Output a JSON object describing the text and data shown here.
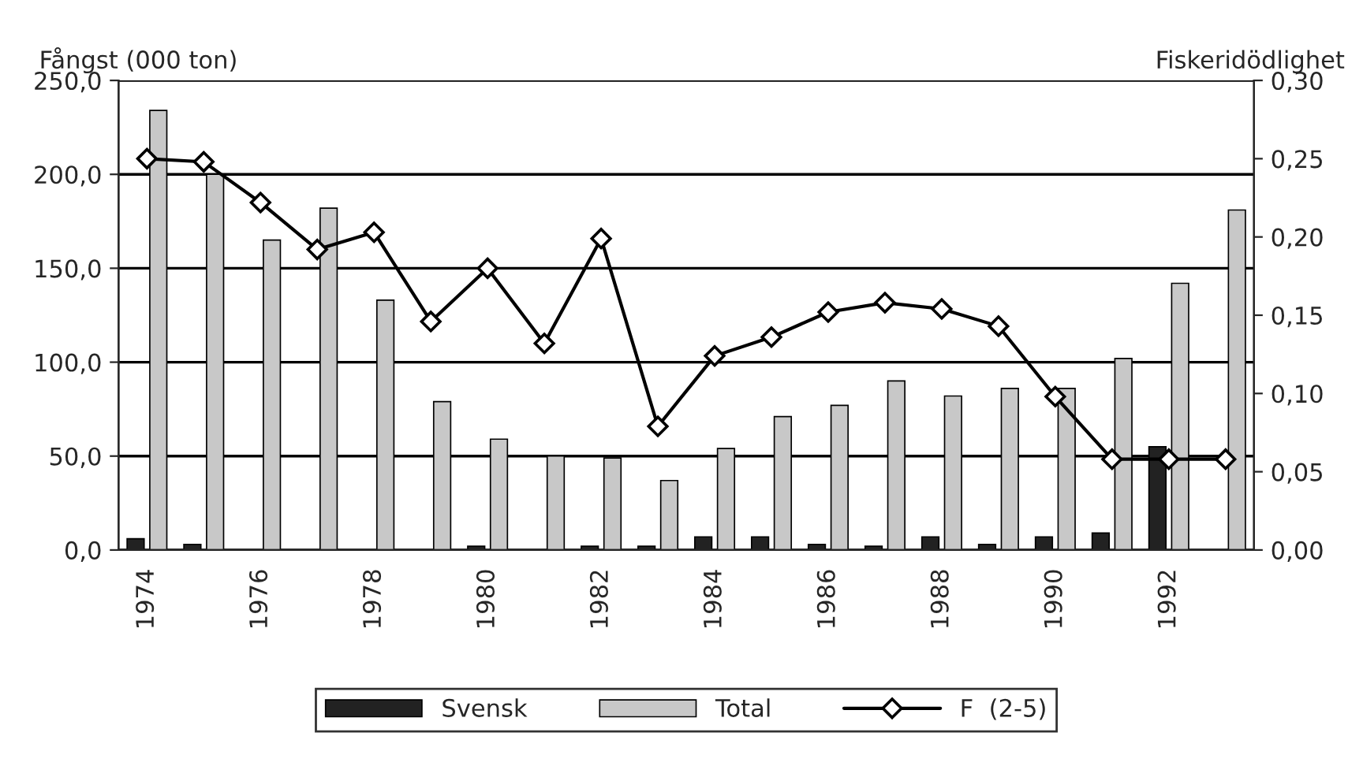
{
  "chart_data": {
    "type": "bar",
    "ylabel": "Fångst (000 ton)",
    "y2label": "Fiskeridödlighet",
    "categories": [
      "1974",
      null,
      "1976",
      null,
      "1978",
      null,
      "1980",
      null,
      "1982",
      null,
      "1984",
      null,
      "1986",
      null,
      "1988",
      null,
      "1990",
      null,
      "1992",
      null
    ],
    "series": [
      {
        "name": "Svensk",
        "color": "#222222",
        "values": [
          6,
          3,
          null,
          null,
          null,
          null,
          2,
          null,
          2,
          2,
          7,
          7,
          3,
          2,
          7,
          3,
          7,
          9,
          55,
          null
        ]
      },
      {
        "name": "Total",
        "color": "#c8c8c8",
        "values": [
          234,
          200,
          165,
          182,
          133,
          79,
          59,
          50,
          49,
          37,
          54,
          71,
          77,
          90,
          82,
          86,
          86,
          102,
          142,
          181
        ]
      },
      {
        "name": "F  (2-5)",
        "type": "line",
        "axis": "y2",
        "color": "#000000",
        "marker": "diamond",
        "values": [
          0.25,
          0.248,
          0.222,
          0.192,
          0.203,
          0.146,
          0.18,
          0.132,
          0.199,
          0.079,
          0.124,
          0.136,
          0.152,
          0.158,
          0.154,
          0.143,
          0.098,
          0.058,
          0.058,
          0.058
        ]
      }
    ],
    "ylim": [
      0,
      250
    ],
    "yticks": [
      {
        "value": 0,
        "label": "0,0"
      },
      {
        "value": 50,
        "label": "50,0"
      },
      {
        "value": 100,
        "label": "100,0"
      },
      {
        "value": 150,
        "label": "150,0"
      },
      {
        "value": 200,
        "label": "200,0"
      },
      {
        "value": 250,
        "label": "250,0"
      }
    ],
    "y2lim": [
      0,
      0.3
    ],
    "y2ticks": [
      {
        "value": 0,
        "label": "0,00"
      },
      {
        "value": 0.05,
        "label": "0,05"
      },
      {
        "value": 0.1,
        "label": "0,10"
      },
      {
        "value": 0.15,
        "label": "0,15"
      },
      {
        "value": 0.2,
        "label": "0,20"
      },
      {
        "value": 0.25,
        "label": "0,25"
      },
      {
        "value": 0.3,
        "label": "0,30"
      }
    ],
    "grid": "y",
    "legend": "bottom"
  }
}
